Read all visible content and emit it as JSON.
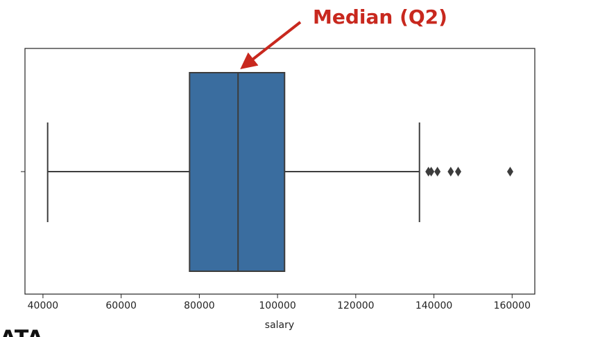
{
  "chart_data": {
    "type": "box",
    "orientation": "horizontal",
    "annotation": "Median (Q2)",
    "xlabel": "salary",
    "xlim": [
      35400,
      165800
    ],
    "xticks": [
      40000,
      60000,
      80000,
      100000,
      120000,
      140000,
      160000
    ],
    "color": "#3a6d9f",
    "annotation_color": "#c8281e",
    "box": {
      "whisker_low": 41200,
      "q1": 77500,
      "median": 89900,
      "q3": 101800,
      "whisker_high": 136300,
      "outliers": [
        138600,
        139300,
        140900,
        144300,
        146200,
        159500
      ]
    },
    "corner_text": "ATA"
  }
}
